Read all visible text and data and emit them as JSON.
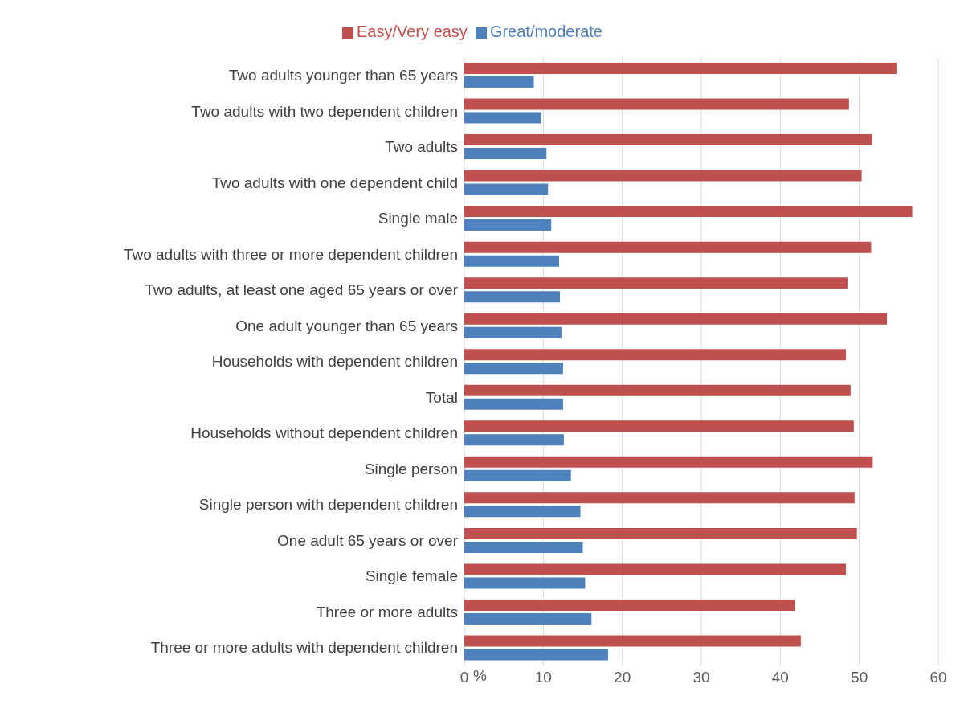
{
  "chart_data": {
    "type": "bar",
    "orientation": "horizontal",
    "xlabel": "%",
    "categories": [
      "Two adults younger than 65 years",
      "Two adults with two dependent children",
      "Two adults",
      "Two adults with one dependent child",
      "Single male",
      "Two adults with three or more dependent children",
      "Two adults, at least one aged 65 years or over",
      "One adult younger than 65 years",
      "Households with dependent children",
      "Total",
      "Households without dependent children",
      "Single person",
      "Single person with dependent children",
      "One adult 65 years or over",
      "Single female",
      "Three or more adults",
      "Three or more adults with dependent children"
    ],
    "series": [
      {
        "name": "Easy/Very easy",
        "color": "#c0504d",
        "values": [
          54.7,
          48.7,
          51.6,
          50.3,
          56.7,
          51.5,
          48.5,
          53.5,
          48.3,
          48.9,
          49.3,
          51.7,
          49.4,
          49.7,
          48.3,
          41.9,
          42.6
        ]
      },
      {
        "name": "Great/moderate",
        "color": "#4f81bd",
        "values": [
          8.8,
          9.7,
          10.4,
          10.6,
          11.0,
          12.0,
          12.1,
          12.3,
          12.5,
          12.5,
          12.6,
          13.5,
          14.7,
          15.0,
          15.3,
          16.1,
          18.2
        ]
      }
    ],
    "xlim": [
      0,
      60
    ],
    "xticks": [
      0,
      10,
      20,
      30,
      40,
      50,
      60
    ],
    "grid": "x",
    "legend": "top"
  }
}
